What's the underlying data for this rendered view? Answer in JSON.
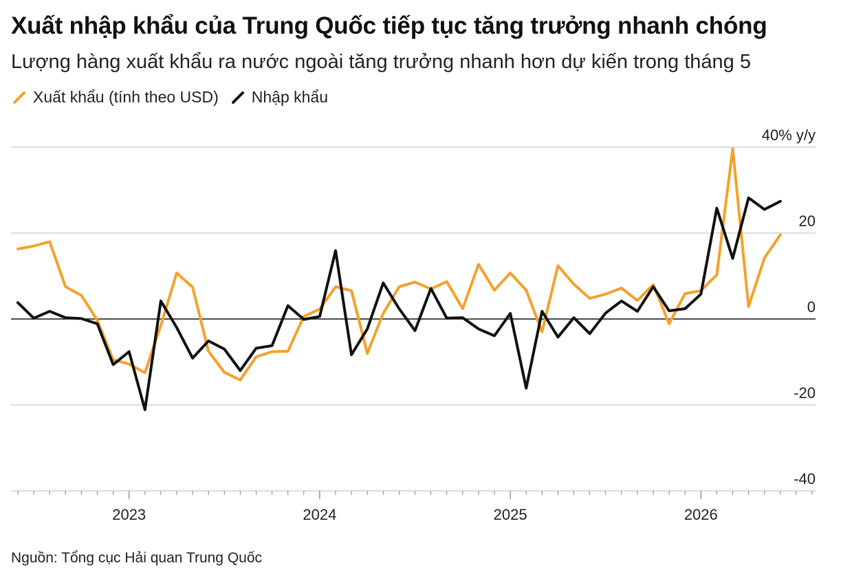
{
  "header": {
    "title": "Xuất nhập khẩu của Trung Quốc tiếp tục tăng trưởng nhanh chóng",
    "subtitle": "Lượng hàng xuất khẩu ra nước ngoài tăng trưởng nhanh hơn dự kiến trong tháng 5"
  },
  "legend": {
    "exports_label": "Xuất khẩu (tính theo USD)",
    "imports_label": "Nhập khẩu"
  },
  "source": "Nguồn: Tổng cục Hải quan Trung Quốc",
  "colors": {
    "exports": "#f4a12a",
    "imports": "#111111",
    "grid": "#c8c8c8",
    "zero": "#111111"
  },
  "chart_data": {
    "type": "line",
    "ylabel": "",
    "y_unit_label": "40% y/y",
    "ylim": [
      -40,
      40
    ],
    "y_ticks": [
      40,
      20,
      0,
      -20,
      -40
    ],
    "y_tick_labels": [
      "40% y/y",
      "20",
      "0",
      "-20",
      "-40"
    ],
    "x_ticks": [
      "2023",
      "2024",
      "2025",
      "2026"
    ],
    "x_start": "2022-06",
    "legend_position": "top-left",
    "grid": true,
    "series": [
      {
        "name": "Xuất khẩu (tính theo USD)",
        "color": "#f4a12a",
        "values": [
          16.3,
          17.0,
          18.0,
          7.5,
          5.5,
          -0.3,
          -9.5,
          -10.5,
          -12.5,
          -1.5,
          10.7,
          7.4,
          -7.5,
          -12.4,
          -14.2,
          -8.8,
          -7.6,
          -7.5,
          0.6,
          2.3,
          7.5,
          6.6,
          -8.0,
          1.3,
          7.5,
          8.6,
          7.0,
          8.7,
          2.4,
          12.7,
          6.7,
          10.7,
          6.7,
          -3.0,
          12.4,
          8.1,
          4.8,
          5.8,
          7.2,
          4.3,
          8.0,
          -1.1,
          5.9,
          6.6,
          10.3,
          39.6,
          2.9,
          14.2,
          19.6
        ],
        "x": [
          "2022-06",
          "2022-07",
          "2022-08",
          "2022-09",
          "2022-10",
          "2022-11",
          "2022-12",
          "2023-01",
          "2023-02",
          "2023-03",
          "2023-04",
          "2023-05",
          "2023-06",
          "2023-07",
          "2023-08",
          "2023-09",
          "2023-10",
          "2023-11",
          "2023-12",
          "2024-01",
          "2024-02",
          "2024-03",
          "2024-04",
          "2024-05",
          "2024-06",
          "2024-07",
          "2024-08",
          "2024-09",
          "2024-10",
          "2024-11",
          "2024-12",
          "2025-01",
          "2025-02",
          "2025-03",
          "2025-04",
          "2025-05",
          "2025-06",
          "2025-07",
          "2025-08",
          "2025-09",
          "2025-10",
          "2025-11",
          "2025-12",
          "2026-01",
          "2026-02",
          "2026-03",
          "2026-04",
          "2026-05",
          "2026-06"
        ]
      },
      {
        "name": "Nhập khẩu",
        "color": "#111111",
        "values": [
          3.8,
          0.2,
          1.8,
          0.3,
          0.1,
          -1.1,
          -10.6,
          -7.6,
          -21.1,
          4.2,
          -2.0,
          -9.1,
          -5.1,
          -7.0,
          -12.0,
          -6.8,
          -6.2,
          3.1,
          -0.1,
          0.6,
          15.9,
          -8.3,
          -2.3,
          8.4,
          2.4,
          -2.7,
          7.1,
          0.2,
          0.3,
          -2.3,
          -3.9,
          1.3,
          -16.1,
          1.8,
          -4.2,
          0.3,
          -3.4,
          1.4,
          4.2,
          1.8,
          7.5,
          1.9,
          2.4,
          5.8,
          25.8,
          14.1,
          28.2,
          25.5,
          27.4
        ],
        "x": [
          "2022-06",
          "2022-07",
          "2022-08",
          "2022-09",
          "2022-10",
          "2022-11",
          "2022-12",
          "2023-01",
          "2023-02",
          "2023-03",
          "2023-04",
          "2023-05",
          "2023-06",
          "2023-07",
          "2023-08",
          "2023-09",
          "2023-10",
          "2023-11",
          "2023-12",
          "2024-01",
          "2024-02",
          "2024-03",
          "2024-04",
          "2024-05",
          "2024-06",
          "2024-07",
          "2024-08",
          "2024-09",
          "2024-10",
          "2024-11",
          "2024-12",
          "2025-01",
          "2025-02",
          "2025-03",
          "2025-04",
          "2025-05",
          "2025-06",
          "2025-07",
          "2025-08",
          "2025-09",
          "2025-10",
          "2025-11",
          "2025-12",
          "2026-01",
          "2026-02",
          "2026-03",
          "2026-04",
          "2026-05",
          "2026-06"
        ]
      }
    ]
  }
}
